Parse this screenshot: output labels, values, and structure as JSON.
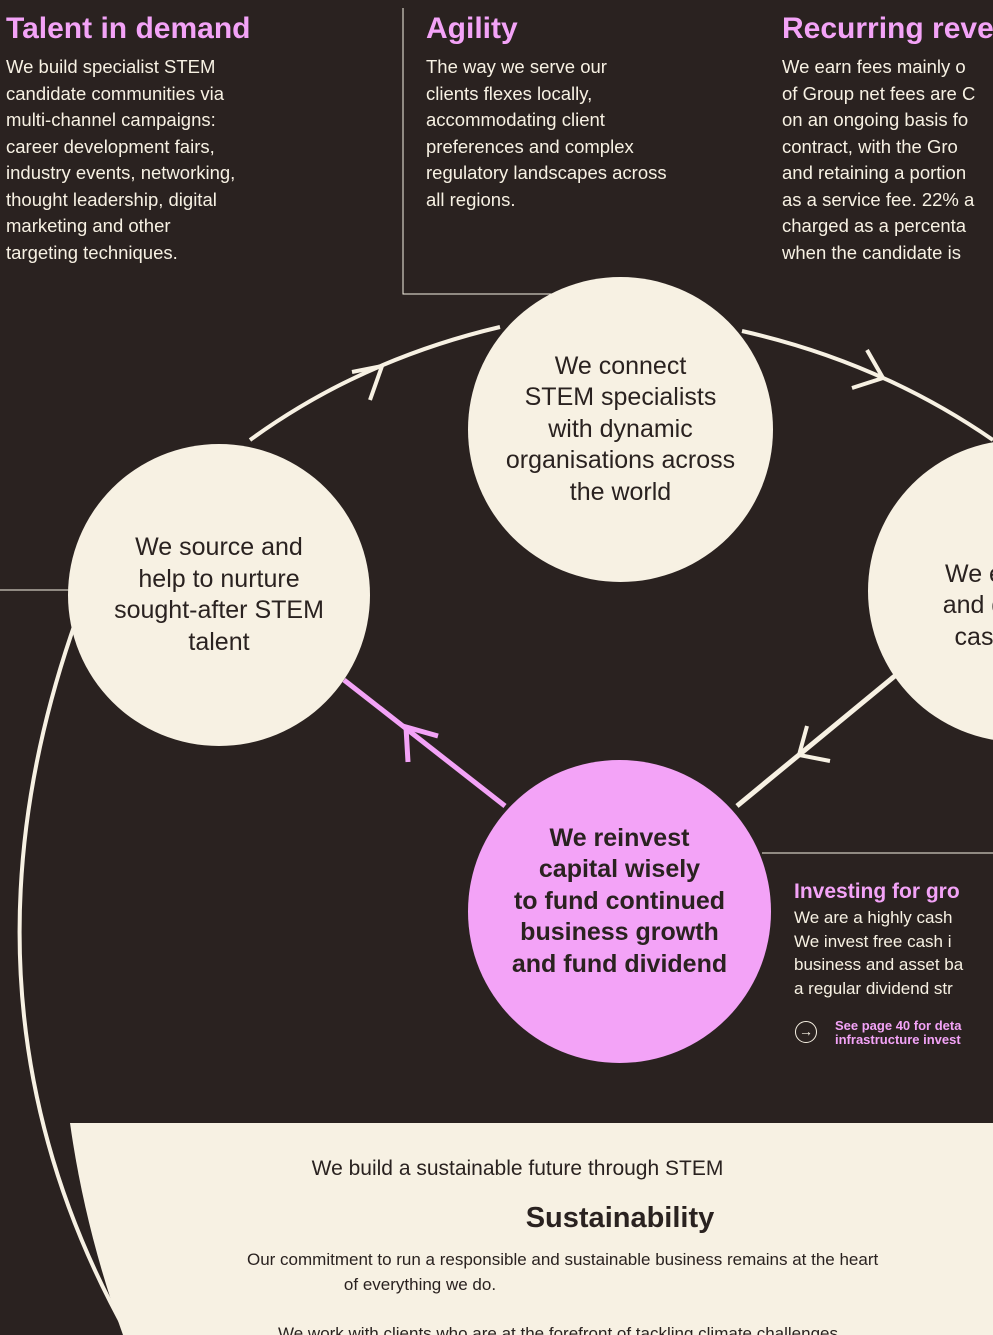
{
  "blocks": {
    "talent": {
      "title": "Talent in demand",
      "lines": [
        "We build specialist STEM",
        "candidate communities via",
        "multi-channel campaigns:",
        "career development fairs,",
        "industry events, networking,",
        "thought leadership, digital",
        "marketing and other",
        "targeting techniques."
      ]
    },
    "agility": {
      "title": "Agility",
      "lines": [
        "The way we serve our",
        "clients flexes locally,",
        "accommodating client",
        "preferences and complex",
        "regulatory landscapes across",
        "all regions."
      ]
    },
    "recurring": {
      "title": "Recurring reve",
      "lines": [
        "We earn fees mainly o",
        "of Group net fees are C",
        "on an ongoing basis fo",
        "contract, with the Gro",
        "and retaining a portion",
        "as a service fee. 22% a",
        "charged as a percenta",
        "when the candidate is"
      ]
    },
    "investing": {
      "title": "Investing for gro",
      "lines": [
        "We are a highly cash",
        "We invest free cash i",
        "business and asset ba",
        "a regular dividend str"
      ],
      "link_lines": [
        "See page 40 for deta",
        "infrastructure invest"
      ]
    }
  },
  "nodes": {
    "connect": [
      "We connect",
      "STEM specialists",
      "with dynamic",
      "organisations across",
      "the world"
    ],
    "source": [
      "We source and",
      "help to nurture",
      "sought-after STEM",
      "talent"
    ],
    "earn": [
      "We e",
      "and g",
      "cas"
    ],
    "reinvest": [
      "We reinvest",
      "capital wisely",
      "to fund continued",
      "business growth",
      "and fund dividend"
    ]
  },
  "sustainability": {
    "tagline": "We build a sustainable future through STEM",
    "title": "Sustainability",
    "lines": [
      "Our commitment to run a responsible and sustainable business remains at the heart",
      "of everything we do."
    ],
    "cut_line": "We work with clients who are at the forefront of tackling climate challenges"
  },
  "colors": {
    "background": "#2a2220",
    "cream": "#f7f1e3",
    "accent_pink": "#f3a3f7"
  }
}
